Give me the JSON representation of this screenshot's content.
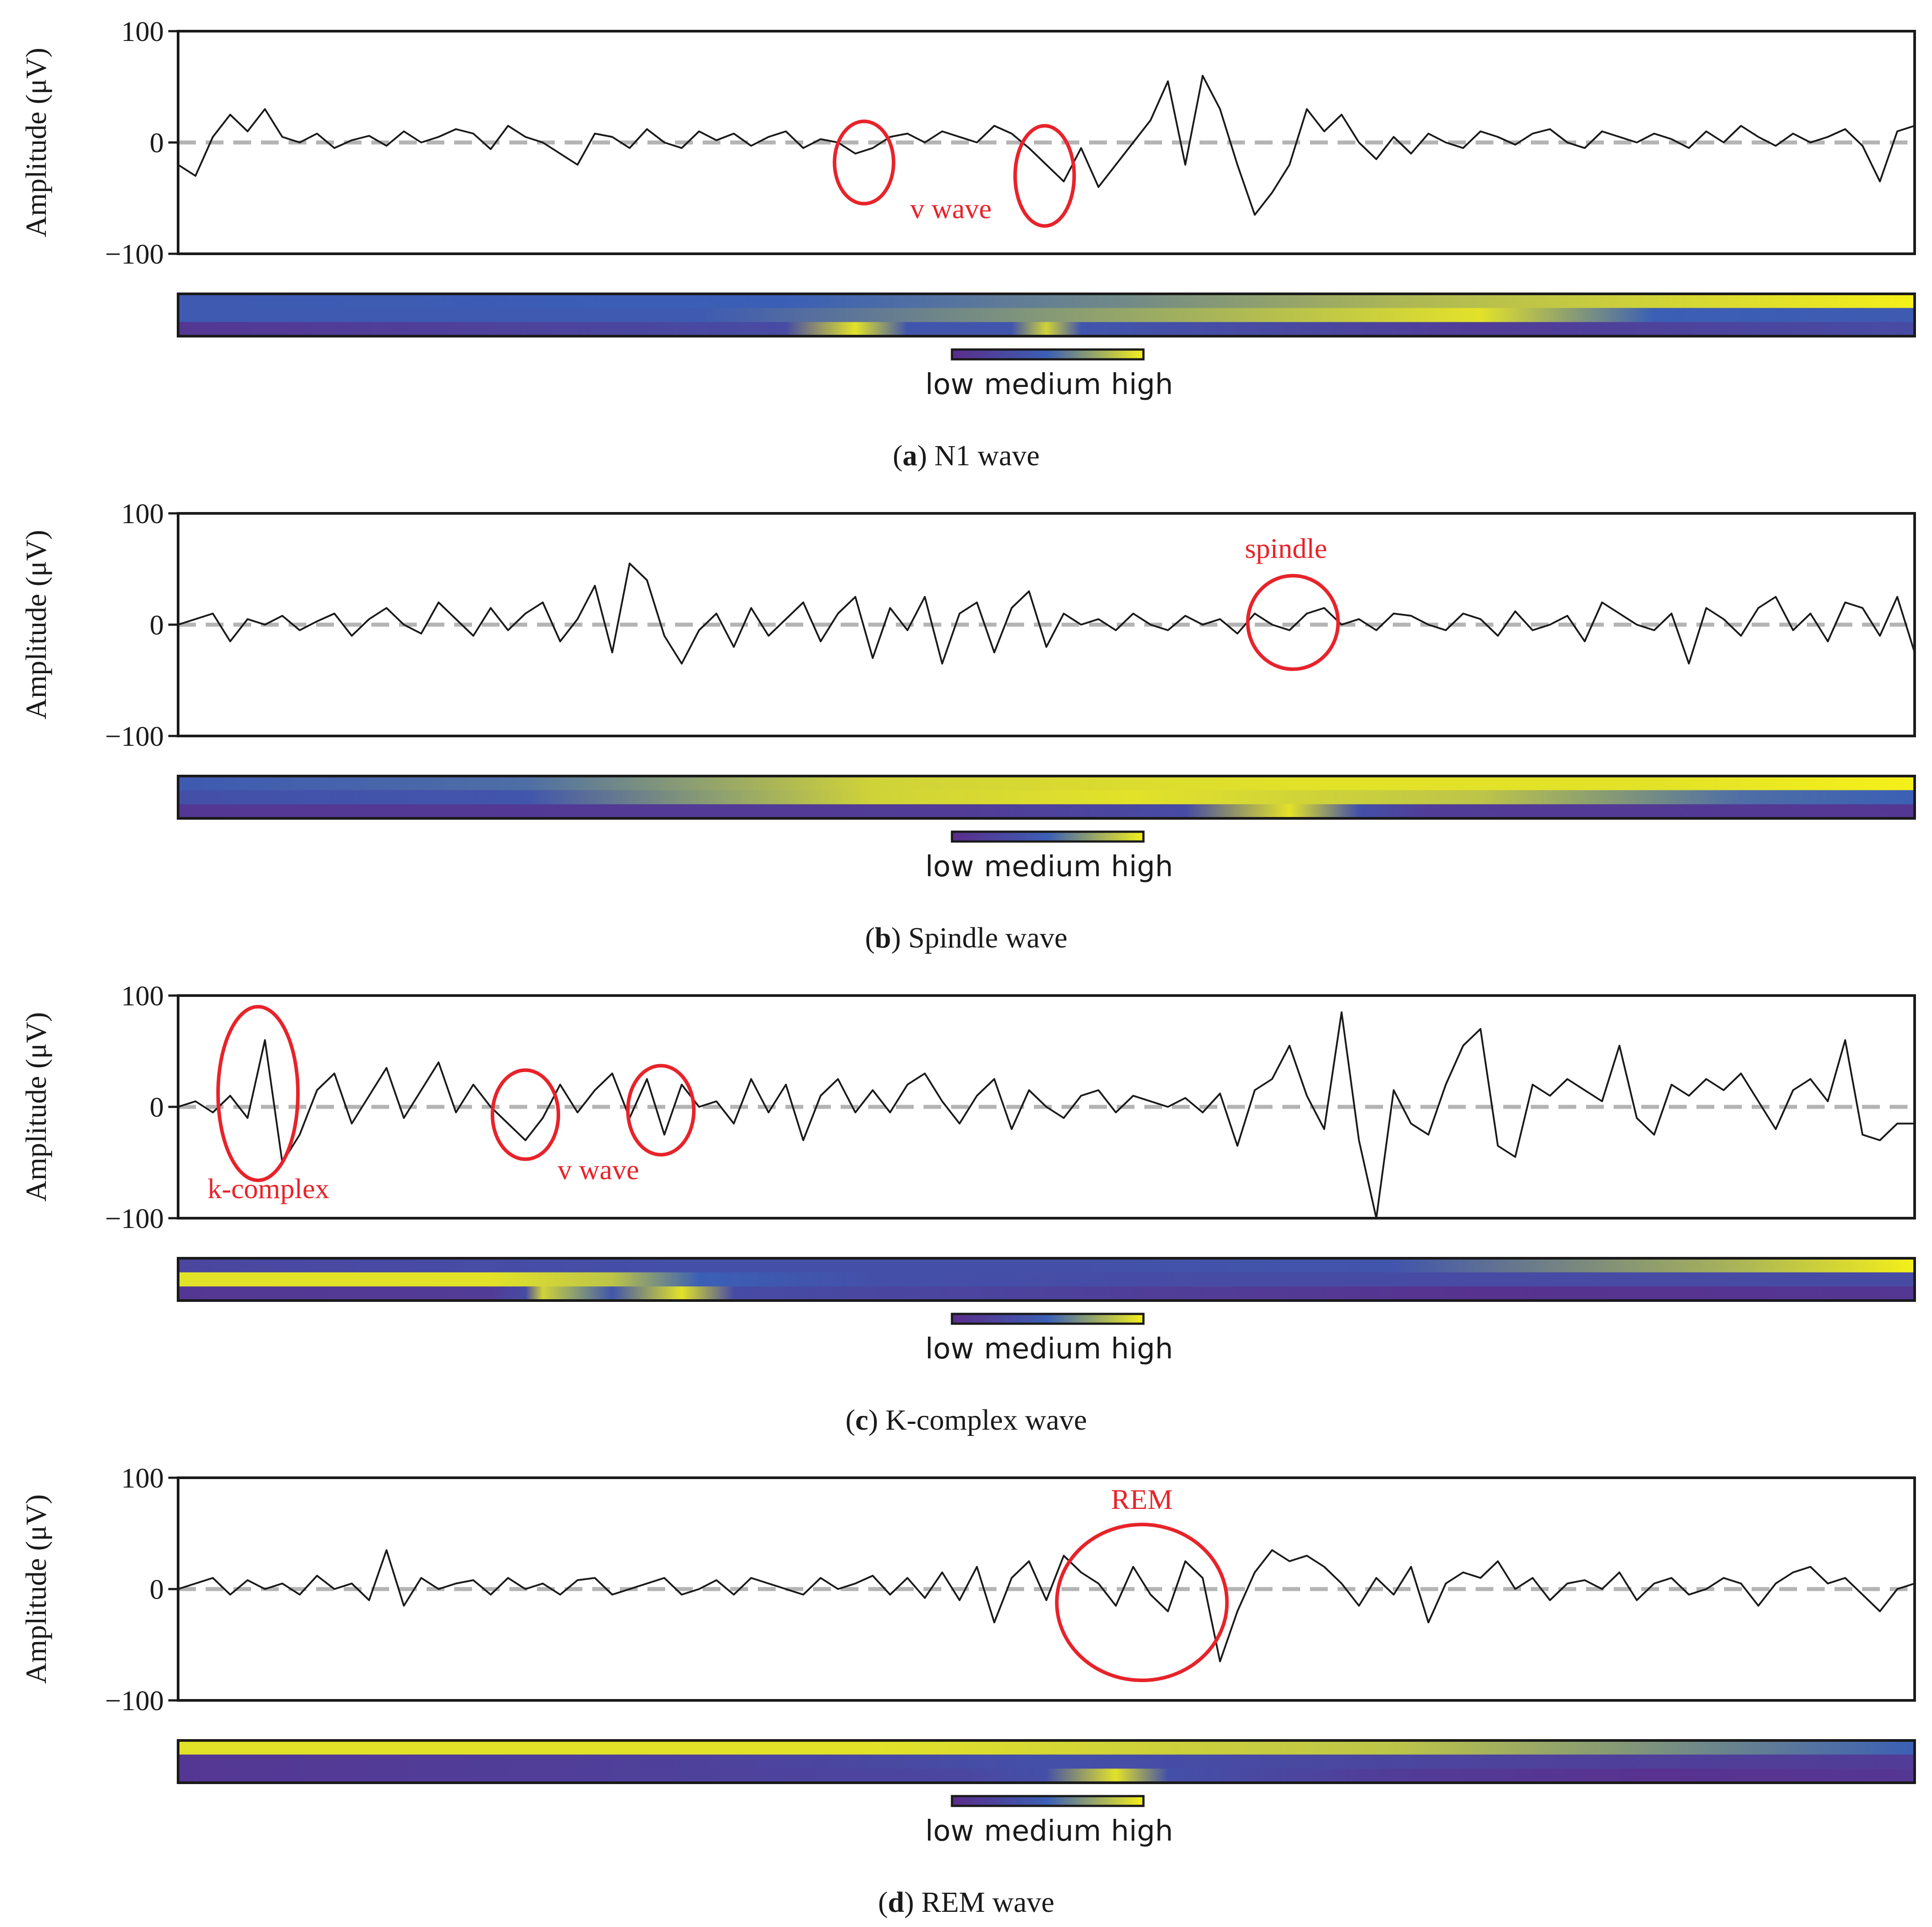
{
  "y_axis_label": "Amplitude (μV)",
  "attention_scale": {
    "low": "low",
    "medium": "medium",
    "high": "high"
  },
  "colors": {
    "signal": "#1a1a1a",
    "baseline": "#b4b4b4",
    "annotation": "#e8232a",
    "attention_low": "#5a2d8a",
    "attention_medium": "#3b5fb5",
    "attention_high": "#f5f019"
  },
  "chart_data": [
    {
      "type": "line",
      "caption_letter": "a",
      "caption_text": "N1 wave",
      "ylim": [
        -100,
        100
      ],
      "yticks": [
        "100",
        "0",
        "−100"
      ],
      "baseline": 0,
      "x": [
        0,
        0.01,
        0.02,
        0.03,
        0.04,
        0.05,
        0.06,
        0.07,
        0.08,
        0.09,
        0.1,
        0.11,
        0.12,
        0.13,
        0.14,
        0.15,
        0.16,
        0.17,
        0.18,
        0.19,
        0.2,
        0.21,
        0.22,
        0.23,
        0.24,
        0.25,
        0.26,
        0.27,
        0.28,
        0.29,
        0.3,
        0.31,
        0.32,
        0.33,
        0.34,
        0.35,
        0.36,
        0.37,
        0.38,
        0.39,
        0.4,
        0.41,
        0.42,
        0.43,
        0.44,
        0.45,
        0.46,
        0.47,
        0.48,
        0.49,
        0.5,
        0.51,
        0.52,
        0.53,
        0.54,
        0.55,
        0.56,
        0.57,
        0.58,
        0.59,
        0.6,
        0.61,
        0.62,
        0.63,
        0.64,
        0.65,
        0.66,
        0.67,
        0.68,
        0.69,
        0.7,
        0.71,
        0.72,
        0.73,
        0.74,
        0.75,
        0.76,
        0.77,
        0.78,
        0.79,
        0.8,
        0.81,
        0.82,
        0.83,
        0.84,
        0.85,
        0.86,
        0.87,
        0.88,
        0.89,
        0.9,
        0.91,
        0.92,
        0.93,
        0.94,
        0.95,
        0.96,
        0.97,
        0.98,
        0.99,
        1.0
      ],
      "y": [
        -20,
        -30,
        5,
        25,
        10,
        30,
        5,
        0,
        8,
        -5,
        2,
        6,
        -3,
        10,
        0,
        5,
        12,
        8,
        -6,
        15,
        5,
        0,
        -10,
        -20,
        8,
        5,
        -5,
        12,
        0,
        -5,
        10,
        2,
        8,
        -3,
        5,
        10,
        -5,
        3,
        0,
        -10,
        -5,
        5,
        8,
        0,
        10,
        5,
        0,
        15,
        8,
        -5,
        -20,
        -35,
        -5,
        -40,
        -20,
        0,
        20,
        55,
        -20,
        60,
        30,
        -20,
        -65,
        -45,
        -20,
        30,
        10,
        25,
        0,
        -15,
        5,
        -10,
        8,
        0,
        -5,
        10,
        5,
        -2,
        8,
        12,
        0,
        -5,
        10,
        5,
        0,
        8,
        3,
        -5,
        10,
        0,
        15,
        5,
        -3,
        8,
        0,
        5,
        12,
        -3,
        -35,
        10,
        15
      ],
      "annotations": [
        {
          "label": "v wave",
          "cx": 0.395,
          "cy": -18,
          "rx": 0.017,
          "ry": 37
        },
        {
          "label": "",
          "cx": 0.499,
          "cy": -30,
          "rx": 0.017,
          "ry": 45
        }
      ],
      "annotation_text": {
        "label": "v wave",
        "x": 0.445,
        "y": -68
      },
      "attention_rows": [
        [
          [
            0,
            0.45
          ],
          [
            0.35,
            0.5
          ],
          [
            0.55,
            0.65
          ],
          [
            0.7,
            0.8
          ],
          [
            1,
            1
          ]
        ],
        [
          [
            0,
            0.45
          ],
          [
            0.3,
            0.45
          ],
          [
            0.5,
            0.7
          ],
          [
            0.75,
            0.95
          ],
          [
            0.85,
            0.5
          ],
          [
            1,
            0.45
          ]
        ],
        [
          [
            0,
            0.1
          ],
          [
            0.35,
            0.3
          ],
          [
            0.39,
            0.95
          ],
          [
            0.42,
            0.4
          ],
          [
            0.48,
            0.4
          ],
          [
            0.5,
            0.9
          ],
          [
            0.52,
            0.4
          ],
          [
            0.75,
            0.15
          ],
          [
            1,
            0.3
          ]
        ]
      ]
    },
    {
      "type": "line",
      "caption_letter": "b",
      "caption_text": "Spindle wave",
      "ylim": [
        -100,
        100
      ],
      "yticks": [
        "100",
        "0",
        "−100"
      ],
      "baseline": 0,
      "x": [
        0,
        0.01,
        0.02,
        0.03,
        0.04,
        0.05,
        0.06,
        0.07,
        0.08,
        0.09,
        0.1,
        0.11,
        0.12,
        0.13,
        0.14,
        0.15,
        0.16,
        0.17,
        0.18,
        0.19,
        0.2,
        0.21,
        0.22,
        0.23,
        0.24,
        0.25,
        0.26,
        0.27,
        0.28,
        0.29,
        0.3,
        0.31,
        0.32,
        0.33,
        0.34,
        0.35,
        0.36,
        0.37,
        0.38,
        0.39,
        0.4,
        0.41,
        0.42,
        0.43,
        0.44,
        0.45,
        0.46,
        0.47,
        0.48,
        0.49,
        0.5,
        0.51,
        0.52,
        0.53,
        0.54,
        0.55,
        0.56,
        0.57,
        0.58,
        0.59,
        0.6,
        0.61,
        0.62,
        0.63,
        0.64,
        0.65,
        0.66,
        0.67,
        0.68,
        0.69,
        0.7,
        0.71,
        0.72,
        0.73,
        0.74,
        0.75,
        0.76,
        0.77,
        0.78,
        0.79,
        0.8,
        0.81,
        0.82,
        0.83,
        0.84,
        0.85,
        0.86,
        0.87,
        0.88,
        0.89,
        0.9,
        0.91,
        0.92,
        0.93,
        0.94,
        0.95,
        0.96,
        0.97,
        0.98,
        0.99,
        1.0
      ],
      "y": [
        0,
        5,
        10,
        -15,
        5,
        0,
        8,
        -5,
        3,
        10,
        -10,
        5,
        15,
        0,
        -8,
        20,
        5,
        -10,
        15,
        -5,
        10,
        20,
        -15,
        5,
        35,
        -25,
        55,
        40,
        -10,
        -35,
        -5,
        10,
        -20,
        15,
        -10,
        5,
        20,
        -15,
        10,
        25,
        -30,
        15,
        -5,
        25,
        -35,
        10,
        20,
        -25,
        15,
        30,
        -20,
        10,
        0,
        5,
        -5,
        10,
        0,
        -5,
        8,
        0,
        5,
        -8,
        10,
        0,
        -5,
        10,
        15,
        0,
        5,
        -5,
        10,
        8,
        0,
        -5,
        10,
        5,
        -10,
        12,
        -5,
        0,
        8,
        -15,
        20,
        10,
        0,
        -5,
        10,
        -35,
        15,
        5,
        -10,
        15,
        25,
        -5,
        10,
        -15,
        20,
        15,
        -10,
        25,
        -25
      ],
      "annotations": [
        {
          "label": "spindle",
          "cx": 0.642,
          "cy": 2,
          "rx": 0.026,
          "ry": 42
        }
      ],
      "annotation_text": {
        "label": "spindle",
        "x": 0.638,
        "y": 60
      },
      "attention_rows": [
        [
          [
            0,
            0.45
          ],
          [
            0.2,
            0.55
          ],
          [
            0.4,
            0.9
          ],
          [
            0.65,
            0.95
          ],
          [
            0.85,
            0.95
          ],
          [
            1,
            1
          ]
        ],
        [
          [
            0,
            0.35
          ],
          [
            0.2,
            0.4
          ],
          [
            0.3,
            0.7
          ],
          [
            0.4,
            0.9
          ],
          [
            0.55,
            0.95
          ],
          [
            0.75,
            0.85
          ],
          [
            0.9,
            0.55
          ],
          [
            1,
            0.5
          ]
        ],
        [
          [
            0,
            0.1
          ],
          [
            0.45,
            0.15
          ],
          [
            0.58,
            0.3
          ],
          [
            0.64,
            0.95
          ],
          [
            0.68,
            0.35
          ],
          [
            0.72,
            0.15
          ],
          [
            1,
            0.1
          ]
        ]
      ]
    },
    {
      "type": "line",
      "caption_letter": "c",
      "caption_text": "K-complex wave",
      "ylim": [
        -100,
        100
      ],
      "yticks": [
        "100",
        "0",
        "−100"
      ],
      "baseline": 0,
      "x": [
        0,
        0.01,
        0.02,
        0.03,
        0.04,
        0.05,
        0.06,
        0.07,
        0.08,
        0.09,
        0.1,
        0.11,
        0.12,
        0.13,
        0.14,
        0.15,
        0.16,
        0.17,
        0.18,
        0.19,
        0.2,
        0.21,
        0.22,
        0.23,
        0.24,
        0.25,
        0.26,
        0.27,
        0.28,
        0.29,
        0.3,
        0.31,
        0.32,
        0.33,
        0.34,
        0.35,
        0.36,
        0.37,
        0.38,
        0.39,
        0.4,
        0.41,
        0.42,
        0.43,
        0.44,
        0.45,
        0.46,
        0.47,
        0.48,
        0.49,
        0.5,
        0.51,
        0.52,
        0.53,
        0.54,
        0.55,
        0.56,
        0.57,
        0.58,
        0.59,
        0.6,
        0.61,
        0.62,
        0.63,
        0.64,
        0.65,
        0.66,
        0.67,
        0.68,
        0.69,
        0.7,
        0.71,
        0.72,
        0.73,
        0.74,
        0.75,
        0.76,
        0.77,
        0.78,
        0.79,
        0.8,
        0.81,
        0.82,
        0.83,
        0.84,
        0.85,
        0.86,
        0.87,
        0.88,
        0.89,
        0.9,
        0.91,
        0.92,
        0.93,
        0.94,
        0.95,
        0.96,
        0.97,
        0.98,
        0.99,
        1.0
      ],
      "y": [
        0,
        5,
        -5,
        10,
        -10,
        60,
        -50,
        -25,
        15,
        30,
        -15,
        10,
        35,
        -10,
        15,
        40,
        -5,
        20,
        0,
        -15,
        -30,
        -10,
        20,
        -5,
        15,
        30,
        -10,
        25,
        -25,
        20,
        0,
        5,
        -15,
        25,
        -5,
        20,
        -30,
        10,
        25,
        -5,
        15,
        -5,
        20,
        30,
        5,
        -15,
        10,
        25,
        -20,
        15,
        0,
        -10,
        10,
        15,
        -5,
        10,
        5,
        0,
        8,
        -5,
        12,
        -35,
        15,
        25,
        55,
        10,
        -20,
        85,
        -30,
        -100,
        15,
        -15,
        -25,
        20,
        55,
        70,
        -35,
        -45,
        20,
        10,
        25,
        15,
        5,
        55,
        -10,
        -25,
        20,
        10,
        25,
        15,
        30,
        5,
        -20,
        15,
        25,
        5,
        60,
        -25,
        -30,
        -15,
        -15
      ],
      "annotations": [
        {
          "label": "k-complex",
          "cx": 0.046,
          "cy": 12,
          "rx": 0.023,
          "ry": 78
        },
        {
          "label": "v wave",
          "cx": 0.2,
          "cy": -7,
          "rx": 0.019,
          "ry": 40
        },
        {
          "label": "",
          "cx": 0.278,
          "cy": -3,
          "rx": 0.019,
          "ry": 40
        }
      ],
      "annotation_text": [
        {
          "label": "k-complex",
          "x": 0.052,
          "y": -82
        },
        {
          "label": "v wave",
          "x": 0.242,
          "y": -65
        }
      ],
      "attention_rows": [
        [
          [
            0,
            0.25
          ],
          [
            0.3,
            0.35
          ],
          [
            0.5,
            0.35
          ],
          [
            0.7,
            0.4
          ],
          [
            0.9,
            0.8
          ],
          [
            1,
            1
          ]
        ],
        [
          [
            0,
            0.95
          ],
          [
            0.18,
            0.95
          ],
          [
            0.25,
            0.85
          ],
          [
            0.3,
            0.5
          ],
          [
            0.4,
            0.35
          ],
          [
            0.6,
            0.3
          ],
          [
            0.8,
            0.3
          ],
          [
            1,
            0.3
          ]
        ],
        [
          [
            0,
            0.1
          ],
          [
            0.18,
            0.15
          ],
          [
            0.2,
            0.3
          ],
          [
            0.21,
            0.9
          ],
          [
            0.23,
            0.7
          ],
          [
            0.25,
            0.4
          ],
          [
            0.29,
            0.95
          ],
          [
            0.32,
            0.3
          ],
          [
            0.6,
            0.15
          ],
          [
            0.75,
            0.05
          ],
          [
            1,
            0.1
          ]
        ]
      ]
    },
    {
      "type": "line",
      "caption_letter": "d",
      "caption_text": "REM wave",
      "ylim": [
        -100,
        100
      ],
      "yticks": [
        "100",
        "0",
        "−100"
      ],
      "baseline": 0,
      "x": [
        0,
        0.01,
        0.02,
        0.03,
        0.04,
        0.05,
        0.06,
        0.07,
        0.08,
        0.09,
        0.1,
        0.11,
        0.12,
        0.13,
        0.14,
        0.15,
        0.16,
        0.17,
        0.18,
        0.19,
        0.2,
        0.21,
        0.22,
        0.23,
        0.24,
        0.25,
        0.26,
        0.27,
        0.28,
        0.29,
        0.3,
        0.31,
        0.32,
        0.33,
        0.34,
        0.35,
        0.36,
        0.37,
        0.38,
        0.39,
        0.4,
        0.41,
        0.42,
        0.43,
        0.44,
        0.45,
        0.46,
        0.47,
        0.48,
        0.49,
        0.5,
        0.51,
        0.52,
        0.53,
        0.54,
        0.55,
        0.56,
        0.57,
        0.58,
        0.59,
        0.6,
        0.61,
        0.62,
        0.63,
        0.64,
        0.65,
        0.66,
        0.67,
        0.68,
        0.69,
        0.7,
        0.71,
        0.72,
        0.73,
        0.74,
        0.75,
        0.76,
        0.77,
        0.78,
        0.79,
        0.8,
        0.81,
        0.82,
        0.83,
        0.84,
        0.85,
        0.86,
        0.87,
        0.88,
        0.89,
        0.9,
        0.91,
        0.92,
        0.93,
        0.94,
        0.95,
        0.96,
        0.97,
        0.98,
        0.99,
        1.0
      ],
      "y": [
        0,
        5,
        10,
        -5,
        8,
        0,
        5,
        -5,
        12,
        0,
        5,
        -10,
        35,
        -15,
        10,
        0,
        5,
        8,
        -5,
        10,
        0,
        5,
        -5,
        8,
        10,
        -5,
        0,
        5,
        10,
        -5,
        0,
        8,
        -5,
        10,
        5,
        0,
        -5,
        10,
        0,
        5,
        12,
        -5,
        10,
        -8,
        15,
        -10,
        20,
        -30,
        10,
        25,
        -10,
        30,
        15,
        5,
        -15,
        20,
        -5,
        -20,
        25,
        10,
        -65,
        -20,
        15,
        35,
        25,
        30,
        20,
        5,
        -15,
        10,
        -5,
        20,
        -30,
        5,
        15,
        10,
        25,
        0,
        10,
        -10,
        5,
        8,
        0,
        15,
        -10,
        5,
        10,
        -5,
        0,
        10,
        5,
        -15,
        5,
        15,
        20,
        5,
        10,
        -5,
        -20,
        0,
        5
      ],
      "annotations": [
        {
          "label": "REM",
          "cx": 0.555,
          "cy": -12,
          "rx": 0.049,
          "ry": 70
        }
      ],
      "annotation_text": {
        "label": "REM",
        "x": 0.555,
        "y": 72
      },
      "attention_rows": [
        [
          [
            0,
            0.95
          ],
          [
            0.4,
            0.95
          ],
          [
            0.7,
            0.85
          ],
          [
            1,
            0.5
          ]
        ],
        [
          [
            0,
            0.1
          ],
          [
            0.3,
            0.2
          ],
          [
            0.5,
            0.35
          ],
          [
            0.8,
            0.2
          ],
          [
            1,
            0.15
          ]
        ],
        [
          [
            0,
            0.1
          ],
          [
            0.45,
            0.25
          ],
          [
            0.5,
            0.35
          ],
          [
            0.54,
            0.95
          ],
          [
            0.57,
            0.35
          ],
          [
            0.7,
            0.15
          ],
          [
            0.85,
            0.05
          ],
          [
            1,
            0.1
          ]
        ]
      ]
    }
  ]
}
